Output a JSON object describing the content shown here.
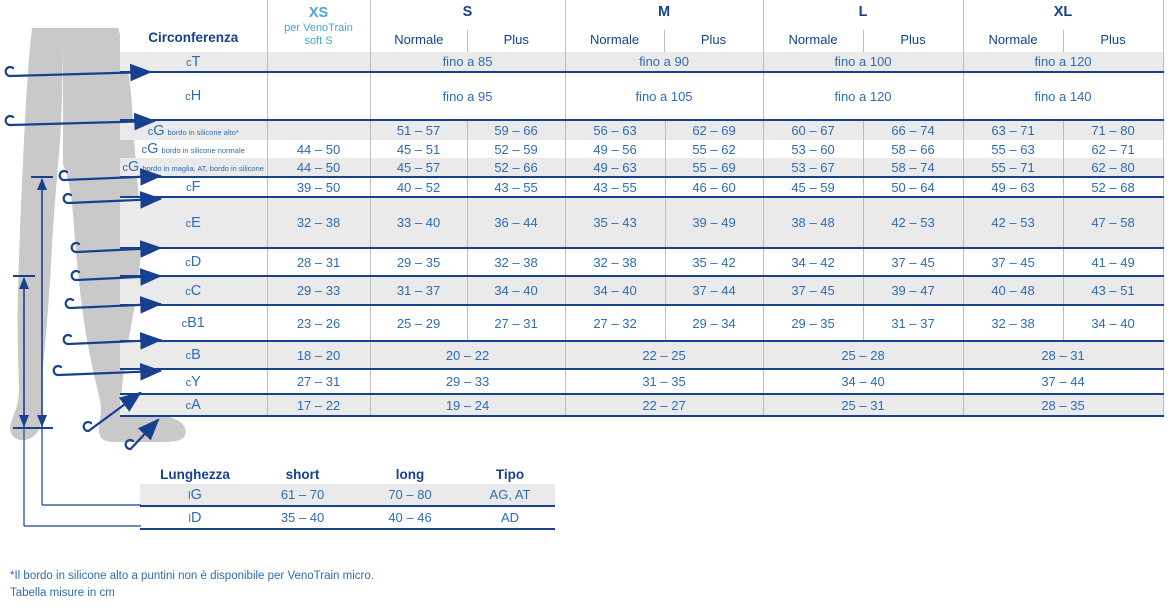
{
  "colors": {
    "navy": "#17418f",
    "value_blue": "#2e6cb3",
    "light_blue": "#45a6d9",
    "row_gray": "#eaeaea",
    "grid_gray": "#bdbdbd",
    "leg_gray": "#c9c9c9"
  },
  "leg": {
    "circumference_arrows": [
      "cT",
      "cH",
      "cG",
      "cF",
      "cE",
      "cD",
      "cC",
      "cB1",
      "cB",
      "cY",
      "cA"
    ],
    "length_lines": [
      "lG",
      "lD"
    ]
  },
  "main_table": {
    "corner_label": "Circonferenza",
    "col_groups": [
      {
        "label": "XS",
        "sublabel": [
          "per VenoTrain",
          "soft S"
        ]
      },
      {
        "label": "S",
        "subcols": [
          "Normale",
          "Plus"
        ]
      },
      {
        "label": "M",
        "subcols": [
          "Normale",
          "Plus"
        ]
      },
      {
        "label": "L",
        "subcols": [
          "Normale",
          "Plus"
        ]
      },
      {
        "label": "XL",
        "subcols": [
          "Normale",
          "Plus"
        ]
      }
    ],
    "rows": [
      {
        "prefix": "c",
        "letter": "T",
        "suffix": "",
        "bg": "gray",
        "sep": "navy",
        "cells": [
          [
            "",
            1
          ],
          [
            "fino a 85",
            2
          ],
          [
            "fino a 90",
            2
          ],
          [
            "fino a 100",
            2
          ],
          [
            "fino a 120",
            2
          ]
        ]
      },
      {
        "prefix": "c",
        "letter": "H",
        "suffix": "",
        "bg": "white",
        "sep": "navy",
        "cells": [
          [
            "",
            1
          ],
          [
            "fino a 95",
            2
          ],
          [
            "fino a 105",
            2
          ],
          [
            "fino a 120",
            2
          ],
          [
            "fino a 140",
            2
          ]
        ]
      },
      {
        "prefix": "c",
        "letter": "G",
        "suffix": "bordo in silicone alto*",
        "bg": "gray",
        "sep": "none",
        "cells": [
          [
            "",
            1
          ],
          [
            "51 – 57",
            1
          ],
          [
            "59 – 66",
            1
          ],
          [
            "56 – 63",
            1
          ],
          [
            "62 – 69",
            1
          ],
          [
            "60 – 67",
            1
          ],
          [
            "66 – 74",
            1
          ],
          [
            "63 – 71",
            1
          ],
          [
            "71 – 80",
            1
          ]
        ]
      },
      {
        "prefix": "c",
        "letter": "G",
        "suffix": "bordo in silicone normale",
        "bg": "white",
        "sep": "none",
        "cells": [
          [
            "44 – 50",
            1
          ],
          [
            "45 – 51",
            1
          ],
          [
            "52 – 59",
            1
          ],
          [
            "49 – 56",
            1
          ],
          [
            "55 – 62",
            1
          ],
          [
            "53 – 60",
            1
          ],
          [
            "58 – 66",
            1
          ],
          [
            "55 – 63",
            1
          ],
          [
            "62 – 71",
            1
          ]
        ]
      },
      {
        "prefix": "c",
        "letter": "G",
        "suffix": "bordo in maglia, AT, bordo in silicone",
        "bg": "gray",
        "sep": "navy",
        "cells": [
          [
            "44 – 50",
            1
          ],
          [
            "45 – 57",
            1
          ],
          [
            "52 – 66",
            1
          ],
          [
            "49 – 63",
            1
          ],
          [
            "55 – 69",
            1
          ],
          [
            "53 – 67",
            1
          ],
          [
            "58 – 74",
            1
          ],
          [
            "55 – 71",
            1
          ],
          [
            "62 – 80",
            1
          ]
        ]
      },
      {
        "prefix": "c",
        "letter": "F",
        "suffix": "",
        "bg": "white",
        "sep": "navy",
        "cells": [
          [
            "39 – 50",
            1
          ],
          [
            "40 – 52",
            1
          ],
          [
            "43 – 55",
            1
          ],
          [
            "43 – 55",
            1
          ],
          [
            "46 – 60",
            1
          ],
          [
            "45 – 59",
            1
          ],
          [
            "50 – 64",
            1
          ],
          [
            "49 – 63",
            1
          ],
          [
            "52 – 68",
            1
          ]
        ]
      },
      {
        "prefix": "c",
        "letter": "E",
        "suffix": "",
        "bg": "gray",
        "sep": "navy",
        "cells": [
          [
            "32 – 38",
            1
          ],
          [
            "33 – 40",
            1
          ],
          [
            "36 – 44",
            1
          ],
          [
            "35 – 43",
            1
          ],
          [
            "39 – 49",
            1
          ],
          [
            "38 – 48",
            1
          ],
          [
            "42 – 53",
            1
          ],
          [
            "42 – 53",
            1
          ],
          [
            "47 – 58",
            1
          ]
        ]
      },
      {
        "prefix": "c",
        "letter": "D",
        "suffix": "",
        "bg": "white",
        "sep": "navy",
        "cells": [
          [
            "28 – 31",
            1
          ],
          [
            "29 – 35",
            1
          ],
          [
            "32 – 38",
            1
          ],
          [
            "32 – 38",
            1
          ],
          [
            "35 – 42",
            1
          ],
          [
            "34 – 42",
            1
          ],
          [
            "37 – 45",
            1
          ],
          [
            "37 – 45",
            1
          ],
          [
            "41 – 49",
            1
          ]
        ]
      },
      {
        "prefix": "c",
        "letter": "C",
        "suffix": "",
        "bg": "gray",
        "sep": "navy",
        "cells": [
          [
            "29 – 33",
            1
          ],
          [
            "31 – 37",
            1
          ],
          [
            "34 – 40",
            1
          ],
          [
            "34 – 40",
            1
          ],
          [
            "37 – 44",
            1
          ],
          [
            "37 – 45",
            1
          ],
          [
            "39 – 47",
            1
          ],
          [
            "40 – 48",
            1
          ],
          [
            "43 – 51",
            1
          ]
        ]
      },
      {
        "prefix": "c",
        "letter": "B1",
        "suffix": "",
        "bg": "white",
        "sep": "navy",
        "cells": [
          [
            "23 – 26",
            1
          ],
          [
            "25 – 29",
            1
          ],
          [
            "27 – 31",
            1
          ],
          [
            "27 – 32",
            1
          ],
          [
            "29 – 34",
            1
          ],
          [
            "29 – 35",
            1
          ],
          [
            "31 – 37",
            1
          ],
          [
            "32 – 38",
            1
          ],
          [
            "34 – 40",
            1
          ]
        ]
      },
      {
        "prefix": "c",
        "letter": "B",
        "suffix": "",
        "bg": "gray",
        "sep": "navy",
        "cells": [
          [
            "18 – 20",
            1
          ],
          [
            "20 – 22",
            2
          ],
          [
            "22 – 25",
            2
          ],
          [
            "25 – 28",
            2
          ],
          [
            "28 – 31",
            2
          ]
        ]
      },
      {
        "prefix": "c",
        "letter": "Y",
        "suffix": "",
        "bg": "white",
        "sep": "navy",
        "cells": [
          [
            "27 – 31",
            1
          ],
          [
            "29 – 33",
            2
          ],
          [
            "31 – 35",
            2
          ],
          [
            "34 – 40",
            2
          ],
          [
            "37 – 44",
            2
          ]
        ]
      },
      {
        "prefix": "c",
        "letter": "A",
        "suffix": "",
        "bg": "gray",
        "sep": "navy",
        "cells": [
          [
            "17 – 22",
            1
          ],
          [
            "19 – 24",
            2
          ],
          [
            "22 – 27",
            2
          ],
          [
            "25 – 31",
            2
          ],
          [
            "28 – 35",
            2
          ]
        ]
      }
    ]
  },
  "length_table": {
    "headers": [
      "Lunghezza",
      "short",
      "long",
      "Tipo"
    ],
    "rows": [
      {
        "prefix": "l",
        "letter": "G",
        "bg": "gray",
        "cells": [
          "61 – 70",
          "70 – 80",
          "AG, AT"
        ]
      },
      {
        "prefix": "l",
        "letter": "D",
        "bg": "white",
        "cells": [
          "35 – 40",
          "40 – 46",
          "AD"
        ]
      }
    ]
  },
  "footnotes": [
    "*Il bordo in silicone alto a puntini non è disponibile per VenoTrain micro.",
    "Tabella misure in cm"
  ]
}
